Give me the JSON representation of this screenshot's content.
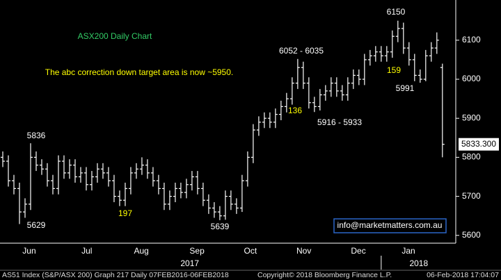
{
  "chart_data": {
    "type": "ohlc",
    "title": "ASX200 Daily Chart",
    "subtitle": "The abc correction down target area is now ~5950.",
    "title_color": "#33cc66",
    "bar_color": "#ffffff",
    "open": [
      5800,
      5790,
      5740,
      5720,
      5660,
      5680,
      5800,
      5780,
      5770,
      5740,
      5720,
      5790,
      5760,
      5780,
      5750,
      5760,
      5730,
      5750,
      5770,
      5760,
      5740,
      5700,
      5690,
      5720,
      5760,
      5770,
      5780,
      5760,
      5740,
      5720,
      5680,
      5700,
      5720,
      5710,
      5730,
      5750,
      5720,
      5690,
      5670,
      5660,
      5650,
      5700,
      5680,
      5670,
      5740,
      5800,
      5870,
      5890,
      5900,
      5890,
      5910,
      5930,
      5950,
      5990,
      6030,
      5990,
      5940,
      5930,
      5960,
      5970,
      5990,
      5970,
      5960,
      5990,
      6010,
      6000,
      6050,
      6060,
      6070,
      6060,
      6070,
      6110,
      6130,
      6080,
      6050,
      6010,
      6000,
      6060,
      6080,
      6030
    ],
    "high": [
      5815,
      5805,
      5755,
      5735,
      5695,
      5836,
      5815,
      5795,
      5785,
      5755,
      5805,
      5805,
      5795,
      5795,
      5775,
      5775,
      5765,
      5785,
      5785,
      5775,
      5755,
      5715,
      5735,
      5775,
      5785,
      5800,
      5795,
      5775,
      5755,
      5735,
      5715,
      5735,
      5735,
      5745,
      5765,
      5765,
      5735,
      5705,
      5685,
      5675,
      5715,
      5715,
      5695,
      5755,
      5815,
      5885,
      5905,
      5915,
      5915,
      5925,
      5945,
      5965,
      6005,
      6052,
      6045,
      6005,
      5955,
      5975,
      5985,
      6005,
      6005,
      5985,
      6005,
      6025,
      6025,
      6065,
      6075,
      6085,
      6085,
      6085,
      6125,
      6150,
      6145,
      6095,
      6065,
      6025,
      6075,
      6095,
      6120,
      6040
    ],
    "low": [
      5775,
      5725,
      5705,
      5629,
      5645,
      5665,
      5765,
      5755,
      5725,
      5705,
      5705,
      5745,
      5745,
      5735,
      5735,
      5715,
      5715,
      5735,
      5745,
      5725,
      5685,
      5675,
      5675,
      5705,
      5745,
      5755,
      5745,
      5725,
      5705,
      5665,
      5665,
      5685,
      5695,
      5695,
      5715,
      5705,
      5675,
      5655,
      5645,
      5639,
      5640,
      5665,
      5655,
      5660,
      5725,
      5785,
      5855,
      5875,
      5875,
      5875,
      5895,
      5915,
      5935,
      5975,
      5975,
      5925,
      5916,
      5920,
      5945,
      5955,
      5955,
      5945,
      5945,
      5975,
      5985,
      5985,
      6035,
      6045,
      6045,
      6045,
      6055,
      6095,
      6065,
      6035,
      5995,
      5991,
      5995,
      6045,
      6065,
      5800
    ],
    "close": [
      5790,
      5740,
      5720,
      5660,
      5680,
      5800,
      5780,
      5770,
      5740,
      5720,
      5790,
      5760,
      5780,
      5750,
      5760,
      5730,
      5750,
      5770,
      5760,
      5740,
      5700,
      5690,
      5720,
      5760,
      5770,
      5780,
      5760,
      5740,
      5720,
      5680,
      5700,
      5720,
      5710,
      5730,
      5750,
      5720,
      5690,
      5670,
      5660,
      5650,
      5700,
      5680,
      5670,
      5740,
      5800,
      5870,
      5890,
      5900,
      5890,
      5910,
      5930,
      5950,
      5990,
      6030,
      5990,
      5940,
      5930,
      5960,
      5970,
      5990,
      5970,
      5960,
      5990,
      6010,
      6000,
      6050,
      6060,
      6070,
      6060,
      6070,
      6110,
      6130,
      6080,
      6050,
      6010,
      6000,
      6060,
      6080,
      6100,
      5833.3
    ],
    "xlim": [
      -0.5,
      81.4
    ],
    "xticks": [
      {
        "value": 4.75,
        "label": "Jun"
      },
      {
        "value": 15.1,
        "label": "Jul"
      },
      {
        "value": 24.9,
        "label": "Aug"
      },
      {
        "value": 34.9,
        "label": "Sep"
      },
      {
        "value": 44.5,
        "label": "Oct"
      },
      {
        "value": 54.1,
        "label": "Nov"
      },
      {
        "value": 63.9,
        "label": "Dec"
      },
      {
        "value": 72.9,
        "label": "Jan"
      }
    ],
    "year_ticks": [
      {
        "value": 33.6,
        "label": "2017"
      },
      {
        "value": 74.75,
        "label": "2018"
      }
    ],
    "year_divider": 68,
    "ylim": [
      5580,
      6203
    ],
    "yticks": [
      5600,
      5700,
      5800,
      5900,
      6000,
      6100
    ],
    "last_price": {
      "value": 5833.3,
      "label": "5833.300"
    },
    "annotations": [
      {
        "text": "5836",
        "color": "#ffffff"
      },
      {
        "text": "5629",
        "color": "#ffffff"
      },
      {
        "text": "197",
        "color": "#ffff00"
      },
      {
        "text": "5639",
        "color": "#ffffff"
      },
      {
        "text": "6052 - 6035",
        "color": "#ffffff"
      },
      {
        "text": "136",
        "color": "#ffff00"
      },
      {
        "text": "5916 - 5933",
        "color": "#ffffff"
      },
      {
        "text": "6150",
        "color": "#ffffff"
      },
      {
        "text": "159",
        "color": "#ffff00"
      },
      {
        "text": "5991",
        "color": "#ffffff"
      }
    ],
    "subtitle_color": "#ffff00",
    "watermark": "info@marketmatters.com.au",
    "footer": [
      "AS51 Index (S&P/ASX 200) Graph 217  Daily 07FEB2016-06FEB2018",
      "Copyright© 2018 Bloomberg Finance L.P.",
      "06-Feb-2018 17:04:07"
    ]
  }
}
